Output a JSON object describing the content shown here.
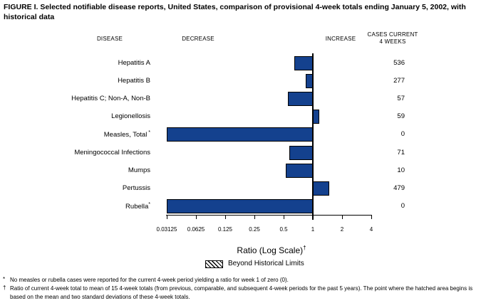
{
  "title": "FIGURE I. Selected notifiable disease reports, United States, comparison of provisional 4-week totals ending January 5, 2002, with historical data",
  "headers": {
    "disease": "DISEASE",
    "decrease": "DECREASE",
    "increase": "INCREASE",
    "cases_line1": "CASES CURRENT",
    "cases_line2": "4 WEEKS"
  },
  "chart_data": {
    "type": "bar",
    "orientation": "horizontal",
    "scale": "log",
    "baseline": 1,
    "axis_range": [
      0.03125,
      4
    ],
    "axis_ticks": [
      0.03125,
      0.0625,
      0.125,
      0.25,
      0.5,
      1,
      2,
      4
    ],
    "tick_labels": [
      "0.03125",
      "0.0625",
      "0.125",
      "0.25",
      "0.5",
      "1",
      "2",
      "4"
    ],
    "xlabel": "Ratio (Log Scale)",
    "xlabel_marker": "†",
    "legend": {
      "label": "Beyond Historical Limits",
      "swatch": "hatched-beyond-limits"
    },
    "rows": [
      {
        "disease": "Hepatitis A",
        "marker": "",
        "ratio": 0.64,
        "cases": "536"
      },
      {
        "disease": "Hepatitis B",
        "marker": "",
        "ratio": 0.85,
        "cases": "277"
      },
      {
        "disease": "Hepatitis C; Non-A, Non-B",
        "marker": "",
        "ratio": 0.55,
        "cases": "57"
      },
      {
        "disease": "Legionellosis",
        "marker": "",
        "ratio": 1.15,
        "cases": "59"
      },
      {
        "disease": "Measles, Total",
        "marker": " *",
        "ratio": 0,
        "cases": "0"
      },
      {
        "disease": "Meningococcal Infections",
        "marker": "",
        "ratio": 0.57,
        "cases": "71"
      },
      {
        "disease": "Mumps",
        "marker": "",
        "ratio": 0.53,
        "cases": "10"
      },
      {
        "disease": "Pertussis",
        "marker": "",
        "ratio": 1.45,
        "cases": "479"
      },
      {
        "disease": "Rubella",
        "marker": "*",
        "ratio": 0,
        "cases": "0"
      }
    ],
    "note": "ratio 0 means no cases reported; bar drawn from axis minimum to 1"
  },
  "footnotes": [
    {
      "marker": "*",
      "text": "No measles or rubella cases were reported for the current 4-week period yielding a ratio for week 1 of zero (0)."
    },
    {
      "marker": "†",
      "text": "Ratio of current 4-week total to mean of 15 4-week totals (from previous, comparable, and subsequent 4-week periods for the past 5 years). The point where the hatched area begins is based on the mean and two standard deviations of these 4-week totals."
    }
  ],
  "colors": {
    "bar": "#14418E",
    "axis": "#000000",
    "background": "#FFFFFF"
  }
}
